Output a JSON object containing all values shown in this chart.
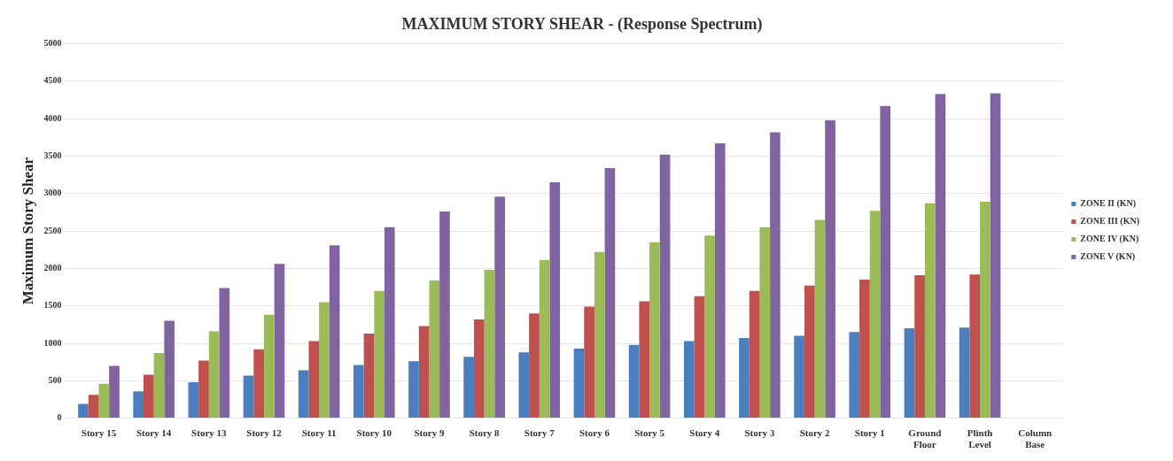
{
  "chart_data": {
    "type": "bar",
    "title": "MAXIMUM STORY SHEAR - (Response Spectrum)",
    "ylabel": "Maximum Story Shear",
    "categories": [
      "Story 15",
      "Story 14",
      "Story 13",
      "Story 12",
      "Story 11",
      "Story 10",
      "Story 9",
      "Story 8",
      "Story 7",
      "Story 6",
      "Story 5",
      "Story 4",
      "Story 3",
      "Story 2",
      "Story 1",
      "Ground Floor",
      "Plinth Level",
      "Column Base"
    ],
    "series": [
      {
        "name": "ZONE II (KN)",
        "color": "#4a7ebf",
        "values": [
          190,
          360,
          480,
          570,
          640,
          710,
          760,
          820,
          880,
          930,
          980,
          1030,
          1070,
          1100,
          1150,
          1200,
          1210,
          null
        ]
      },
      {
        "name": "ZONE III (KN)",
        "color": "#c0504d",
        "values": [
          310,
          580,
          770,
          920,
          1030,
          1130,
          1230,
          1320,
          1400,
          1490,
          1560,
          1630,
          1700,
          1770,
          1850,
          1910,
          1920,
          null
        ]
      },
      {
        "name": "ZONE IV (KN)",
        "color": "#9bbb59",
        "values": [
          460,
          870,
          1160,
          1380,
          1550,
          1700,
          1840,
          1980,
          2110,
          2220,
          2350,
          2440,
          2550,
          2650,
          2770,
          2870,
          2890,
          null
        ]
      },
      {
        "name": "ZONE V (KN)",
        "color": "#8064a2",
        "values": [
          700,
          1300,
          1740,
          2060,
          2310,
          2550,
          2760,
          2960,
          3150,
          3340,
          3520,
          3670,
          3820,
          3980,
          4170,
          4330,
          4340,
          null
        ]
      }
    ],
    "ylim": [
      0,
      5000
    ],
    "yticks": [
      0,
      500,
      1000,
      1500,
      2000,
      2500,
      3000,
      3500,
      4000,
      4500,
      5000
    ],
    "grid": "y",
    "legend": "right"
  }
}
